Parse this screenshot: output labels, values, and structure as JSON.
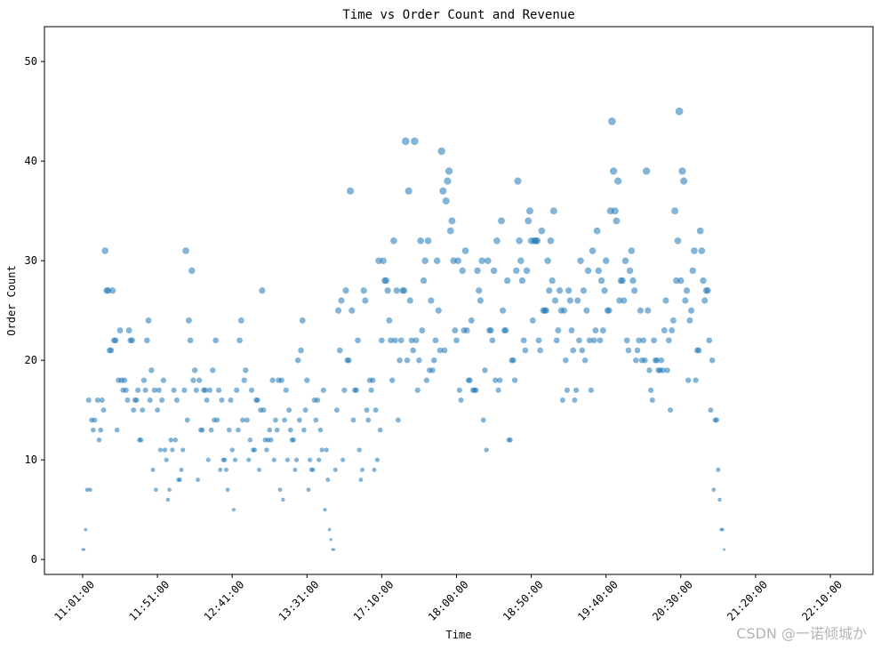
{
  "chart_data": {
    "type": "scatter",
    "title": "Time vs Order Count and Revenue",
    "xlabel": "Time",
    "ylabel": "Order Count",
    "x_tick_labels": [
      "11:01:00",
      "11:51:00",
      "12:41:00",
      "13:31:00",
      "17:10:00",
      "18:00:00",
      "18:50:00",
      "19:40:00",
      "20:30:00",
      "21:20:00",
      "22:10:00"
    ],
    "x_index_range": [
      0,
      500
    ],
    "y_ticks": [
      0,
      10,
      20,
      30,
      40,
      50
    ],
    "ylim": [
      -1.5,
      53.5
    ],
    "grid": false,
    "point_color": "#1f77b4",
    "point_alpha": 0.55,
    "size_encodes": "revenue (proportional to order count)",
    "points": [
      [
        0,
        1
      ],
      [
        1,
        1
      ],
      [
        2,
        3
      ],
      [
        3,
        7
      ],
      [
        4,
        16
      ],
      [
        5,
        7
      ],
      [
        6,
        14
      ],
      [
        7,
        13
      ],
      [
        8,
        14
      ],
      [
        10,
        16
      ],
      [
        11,
        12
      ],
      [
        12,
        13
      ],
      [
        13,
        16
      ],
      [
        14,
        15
      ],
      [
        15,
        31
      ],
      [
        16,
        27
      ],
      [
        17,
        27
      ],
      [
        18,
        21
      ],
      [
        19,
        21
      ],
      [
        20,
        27
      ],
      [
        21,
        22
      ],
      [
        22,
        22
      ],
      [
        23,
        13
      ],
      [
        24,
        18
      ],
      [
        25,
        23
      ],
      [
        26,
        18
      ],
      [
        27,
        17
      ],
      [
        28,
        18
      ],
      [
        29,
        17
      ],
      [
        30,
        16
      ],
      [
        31,
        23
      ],
      [
        32,
        22
      ],
      [
        33,
        22
      ],
      [
        34,
        15
      ],
      [
        35,
        16
      ],
      [
        36,
        16
      ],
      [
        37,
        17
      ],
      [
        38,
        12
      ],
      [
        39,
        12
      ],
      [
        40,
        15
      ],
      [
        41,
        18
      ],
      [
        42,
        17
      ],
      [
        43,
        22
      ],
      [
        44,
        24
      ],
      [
        45,
        16
      ],
      [
        46,
        19
      ],
      [
        47,
        9
      ],
      [
        48,
        17
      ],
      [
        49,
        7
      ],
      [
        50,
        15
      ],
      [
        51,
        17
      ],
      [
        52,
        11
      ],
      [
        53,
        16
      ],
      [
        54,
        18
      ],
      [
        55,
        11
      ],
      [
        56,
        10
      ],
      [
        57,
        6
      ],
      [
        58,
        7
      ],
      [
        59,
        12
      ],
      [
        60,
        11
      ],
      [
        61,
        17
      ],
      [
        62,
        12
      ],
      [
        63,
        16
      ],
      [
        64,
        8
      ],
      [
        65,
        8
      ],
      [
        66,
        9
      ],
      [
        67,
        11
      ],
      [
        68,
        17
      ],
      [
        69,
        31
      ],
      [
        70,
        14
      ],
      [
        71,
        24
      ],
      [
        72,
        22
      ],
      [
        73,
        29
      ],
      [
        74,
        18
      ],
      [
        75,
        19
      ],
      [
        76,
        17
      ],
      [
        77,
        8
      ],
      [
        78,
        18
      ],
      [
        79,
        13
      ],
      [
        80,
        13
      ],
      [
        81,
        17
      ],
      [
        82,
        17
      ],
      [
        83,
        16
      ],
      [
        84,
        10
      ],
      [
        85,
        17
      ],
      [
        86,
        13
      ],
      [
        87,
        19
      ],
      [
        88,
        14
      ],
      [
        89,
        22
      ],
      [
        90,
        14
      ],
      [
        91,
        17
      ],
      [
        92,
        9
      ],
      [
        93,
        16
      ],
      [
        94,
        10
      ],
      [
        95,
        10
      ],
      [
        96,
        9
      ],
      [
        97,
        7
      ],
      [
        98,
        13
      ],
      [
        99,
        16
      ],
      [
        100,
        11
      ],
      [
        101,
        5
      ],
      [
        102,
        10
      ],
      [
        103,
        17
      ],
      [
        104,
        13
      ],
      [
        105,
        22
      ],
      [
        106,
        24
      ],
      [
        107,
        14
      ],
      [
        108,
        18
      ],
      [
        109,
        19
      ],
      [
        110,
        14
      ],
      [
        111,
        10
      ],
      [
        112,
        12
      ],
      [
        113,
        17
      ],
      [
        114,
        11
      ],
      [
        115,
        11
      ],
      [
        116,
        16
      ],
      [
        117,
        16
      ],
      [
        118,
        9
      ],
      [
        119,
        15
      ],
      [
        120,
        27
      ],
      [
        121,
        15
      ],
      [
        122,
        12
      ],
      [
        123,
        11
      ],
      [
        124,
        12
      ],
      [
        125,
        13
      ],
      [
        126,
        12
      ],
      [
        127,
        18
      ],
      [
        128,
        10
      ],
      [
        129,
        14
      ],
      [
        130,
        13
      ],
      [
        131,
        18
      ],
      [
        132,
        7
      ],
      [
        133,
        18
      ],
      [
        134,
        6
      ],
      [
        135,
        14
      ],
      [
        136,
        17
      ],
      [
        137,
        10
      ],
      [
        138,
        15
      ],
      [
        139,
        13
      ],
      [
        140,
        12
      ],
      [
        141,
        12
      ],
      [
        142,
        9
      ],
      [
        143,
        10
      ],
      [
        144,
        20
      ],
      [
        145,
        14
      ],
      [
        146,
        21
      ],
      [
        147,
        24
      ],
      [
        148,
        13
      ],
      [
        149,
        15
      ],
      [
        150,
        18
      ],
      [
        151,
        7
      ],
      [
        152,
        10
      ],
      [
        153,
        9
      ],
      [
        154,
        9
      ],
      [
        155,
        16
      ],
      [
        156,
        14
      ],
      [
        157,
        16
      ],
      [
        158,
        10
      ],
      [
        159,
        13
      ],
      [
        160,
        11
      ],
      [
        161,
        17
      ],
      [
        162,
        5
      ],
      [
        163,
        11
      ],
      [
        164,
        8
      ],
      [
        165,
        3
      ],
      [
        166,
        2
      ],
      [
        167,
        1
      ],
      [
        168,
        1
      ],
      [
        169,
        9
      ],
      [
        170,
        15
      ],
      [
        171,
        25
      ],
      [
        172,
        21
      ],
      [
        173,
        26
      ],
      [
        174,
        10
      ],
      [
        175,
        17
      ],
      [
        176,
        27
      ],
      [
        177,
        20
      ],
      [
        178,
        20
      ],
      [
        179,
        37
      ],
      [
        180,
        25
      ],
      [
        181,
        14
      ],
      [
        182,
        17
      ],
      [
        183,
        17
      ],
      [
        184,
        22
      ],
      [
        185,
        11
      ],
      [
        186,
        8
      ],
      [
        187,
        9
      ],
      [
        188,
        27
      ],
      [
        189,
        26
      ],
      [
        190,
        15
      ],
      [
        191,
        14
      ],
      [
        192,
        18
      ],
      [
        193,
        17
      ],
      [
        194,
        18
      ],
      [
        195,
        9
      ],
      [
        196,
        15
      ],
      [
        197,
        10
      ],
      [
        198,
        30
      ],
      [
        199,
        13
      ],
      [
        200,
        22
      ],
      [
        201,
        30
      ],
      [
        202,
        28
      ],
      [
        203,
        28
      ],
      [
        204,
        27
      ],
      [
        205,
        24
      ],
      [
        206,
        22
      ],
      [
        207,
        18
      ],
      [
        208,
        32
      ],
      [
        209,
        22
      ],
      [
        210,
        27
      ],
      [
        211,
        14
      ],
      [
        212,
        20
      ],
      [
        213,
        22
      ],
      [
        214,
        27
      ],
      [
        215,
        27
      ],
      [
        216,
        42
      ],
      [
        217,
        20
      ],
      [
        218,
        37
      ],
      [
        219,
        26
      ],
      [
        220,
        22
      ],
      [
        221,
        21
      ],
      [
        222,
        42
      ],
      [
        223,
        22
      ],
      [
        224,
        17
      ],
      [
        225,
        20
      ],
      [
        226,
        32
      ],
      [
        227,
        23
      ],
      [
        228,
        28
      ],
      [
        229,
        30
      ],
      [
        230,
        18
      ],
      [
        231,
        32
      ],
      [
        232,
        19
      ],
      [
        233,
        26
      ],
      [
        234,
        19
      ],
      [
        235,
        20
      ],
      [
        236,
        22
      ],
      [
        237,
        30
      ],
      [
        238,
        25
      ],
      [
        239,
        21
      ],
      [
        240,
        41
      ],
      [
        241,
        37
      ],
      [
        242,
        21
      ],
      [
        243,
        36
      ],
      [
        244,
        38
      ],
      [
        245,
        39
      ],
      [
        246,
        33
      ],
      [
        247,
        34
      ],
      [
        248,
        30
      ],
      [
        249,
        23
      ],
      [
        250,
        22
      ],
      [
        251,
        30
      ],
      [
        252,
        17
      ],
      [
        253,
        16
      ],
      [
        254,
        29
      ],
      [
        255,
        23
      ],
      [
        256,
        31
      ],
      [
        257,
        23
      ],
      [
        258,
        18
      ],
      [
        259,
        18
      ],
      [
        260,
        24
      ],
      [
        261,
        17
      ],
      [
        262,
        17
      ],
      [
        263,
        17
      ],
      [
        264,
        29
      ],
      [
        265,
        27
      ],
      [
        266,
        26
      ],
      [
        267,
        30
      ],
      [
        268,
        14
      ],
      [
        269,
        19
      ],
      [
        270,
        11
      ],
      [
        271,
        30
      ],
      [
        272,
        23
      ],
      [
        273,
        23
      ],
      [
        274,
        22
      ],
      [
        275,
        29
      ],
      [
        276,
        18
      ],
      [
        277,
        32
      ],
      [
        278,
        17
      ],
      [
        279,
        18
      ],
      [
        280,
        34
      ],
      [
        281,
        25
      ],
      [
        282,
        23
      ],
      [
        283,
        23
      ],
      [
        284,
        28
      ],
      [
        285,
        12
      ],
      [
        286,
        12
      ],
      [
        287,
        20
      ],
      [
        288,
        20
      ],
      [
        289,
        18
      ],
      [
        290,
        29
      ],
      [
        291,
        38
      ],
      [
        292,
        32
      ],
      [
        293,
        30
      ],
      [
        294,
        28
      ],
      [
        295,
        22
      ],
      [
        296,
        21
      ],
      [
        297,
        29
      ],
      [
        298,
        34
      ],
      [
        299,
        35
      ],
      [
        300,
        32
      ],
      [
        301,
        24
      ],
      [
        302,
        32
      ],
      [
        303,
        32
      ],
      [
        304,
        32
      ],
      [
        305,
        22
      ],
      [
        306,
        21
      ],
      [
        307,
        33
      ],
      [
        308,
        25
      ],
      [
        309,
        25
      ],
      [
        310,
        25
      ],
      [
        311,
        30
      ],
      [
        312,
        27
      ],
      [
        313,
        32
      ],
      [
        314,
        28
      ],
      [
        315,
        35
      ],
      [
        316,
        26
      ],
      [
        317,
        22
      ],
      [
        318,
        23
      ],
      [
        319,
        27
      ],
      [
        320,
        25
      ],
      [
        321,
        16
      ],
      [
        322,
        25
      ],
      [
        323,
        20
      ],
      [
        324,
        17
      ],
      [
        325,
        27
      ],
      [
        326,
        26
      ],
      [
        327,
        23
      ],
      [
        328,
        21
      ],
      [
        329,
        16
      ],
      [
        330,
        17
      ],
      [
        331,
        26
      ],
      [
        332,
        22
      ],
      [
        333,
        30
      ],
      [
        334,
        21
      ],
      [
        335,
        27
      ],
      [
        336,
        20
      ],
      [
        337,
        25
      ],
      [
        338,
        29
      ],
      [
        339,
        22
      ],
      [
        340,
        17
      ],
      [
        341,
        31
      ],
      [
        342,
        22
      ],
      [
        343,
        23
      ],
      [
        344,
        33
      ],
      [
        345,
        29
      ],
      [
        346,
        22
      ],
      [
        347,
        28
      ],
      [
        348,
        23
      ],
      [
        349,
        27
      ],
      [
        350,
        30
      ],
      [
        351,
        25
      ],
      [
        352,
        25
      ],
      [
        353,
        35
      ],
      [
        354,
        44
      ],
      [
        355,
        39
      ],
      [
        356,
        35
      ],
      [
        357,
        34
      ],
      [
        358,
        38
      ],
      [
        359,
        26
      ],
      [
        360,
        28
      ],
      [
        361,
        28
      ],
      [
        362,
        26
      ],
      [
        363,
        30
      ],
      [
        364,
        22
      ],
      [
        365,
        21
      ],
      [
        366,
        29
      ],
      [
        367,
        31
      ],
      [
        368,
        28
      ],
      [
        369,
        27
      ],
      [
        370,
        20
      ],
      [
        371,
        21
      ],
      [
        372,
        22
      ],
      [
        373,
        25
      ],
      [
        374,
        20
      ],
      [
        375,
        22
      ],
      [
        376,
        20
      ],
      [
        377,
        39
      ],
      [
        378,
        25
      ],
      [
        379,
        19
      ],
      [
        380,
        17
      ],
      [
        381,
        16
      ],
      [
        382,
        22
      ],
      [
        383,
        20
      ],
      [
        384,
        20
      ],
      [
        385,
        19
      ],
      [
        386,
        19
      ],
      [
        387,
        20
      ],
      [
        388,
        19
      ],
      [
        389,
        23
      ],
      [
        390,
        26
      ],
      [
        391,
        19
      ],
      [
        392,
        22
      ],
      [
        393,
        15
      ],
      [
        394,
        23
      ],
      [
        395,
        24
      ],
      [
        396,
        35
      ],
      [
        397,
        28
      ],
      [
        398,
        32
      ],
      [
        399,
        45
      ],
      [
        400,
        28
      ],
      [
        401,
        39
      ],
      [
        402,
        38
      ],
      [
        403,
        26
      ],
      [
        404,
        27
      ],
      [
        405,
        18
      ],
      [
        406,
        24
      ],
      [
        407,
        25
      ],
      [
        408,
        29
      ],
      [
        409,
        31
      ],
      [
        410,
        18
      ],
      [
        411,
        21
      ],
      [
        412,
        21
      ],
      [
        413,
        33
      ],
      [
        414,
        31
      ],
      [
        415,
        28
      ],
      [
        416,
        26
      ],
      [
        417,
        27
      ],
      [
        418,
        27
      ],
      [
        419,
        22
      ],
      [
        420,
        15
      ],
      [
        421,
        20
      ],
      [
        422,
        7
      ],
      [
        423,
        14
      ],
      [
        424,
        14
      ],
      [
        425,
        9
      ],
      [
        426,
        6
      ],
      [
        427,
        3
      ],
      [
        428,
        3
      ],
      [
        429,
        1
      ]
    ]
  },
  "watermark": "CSDN @一诺倾城か"
}
